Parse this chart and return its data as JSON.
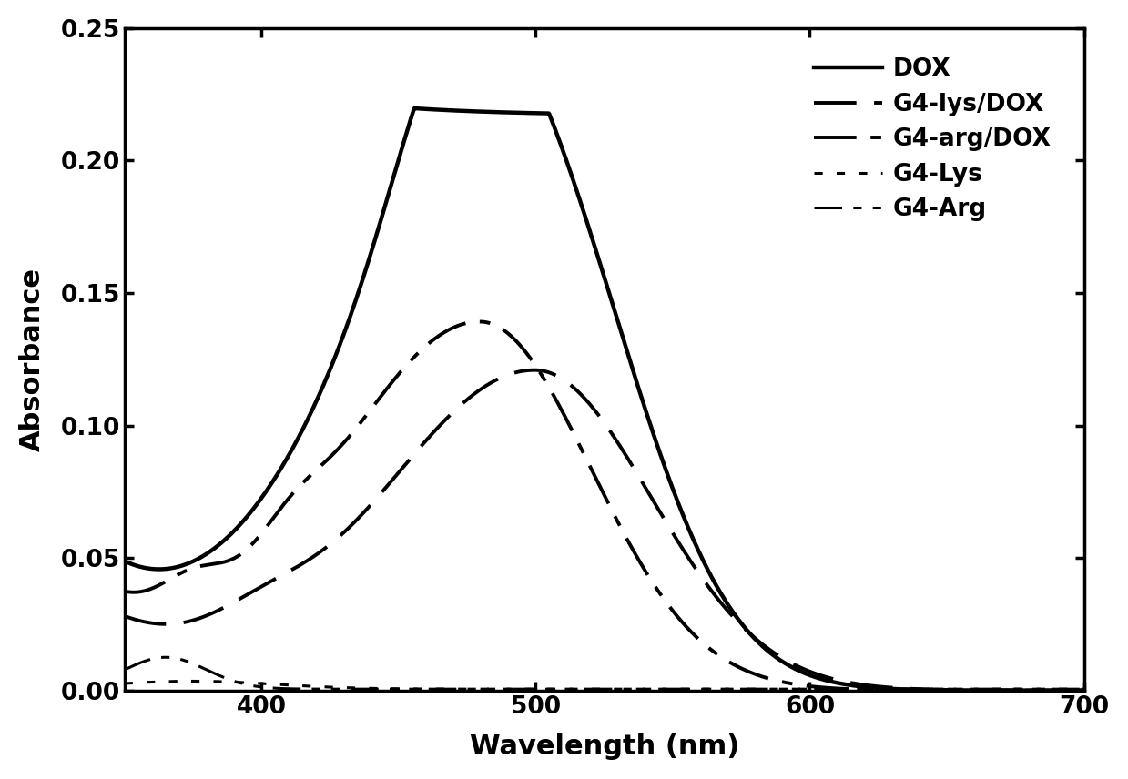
{
  "title": "",
  "xlabel": "Wavelength (nm)",
  "ylabel": "Absorbance",
  "xlim": [
    350,
    700
  ],
  "ylim": [
    0,
    0.25
  ],
  "xticks": [
    400,
    500,
    600,
    700
  ],
  "yticks": [
    0.0,
    0.05,
    0.1,
    0.15,
    0.2,
    0.25
  ],
  "background_color": "#ffffff",
  "legend_labels": [
    "DOX",
    "G4-lys/DOX",
    "G4-arg/DOX",
    "G4-Lys",
    "G4-Arg"
  ]
}
